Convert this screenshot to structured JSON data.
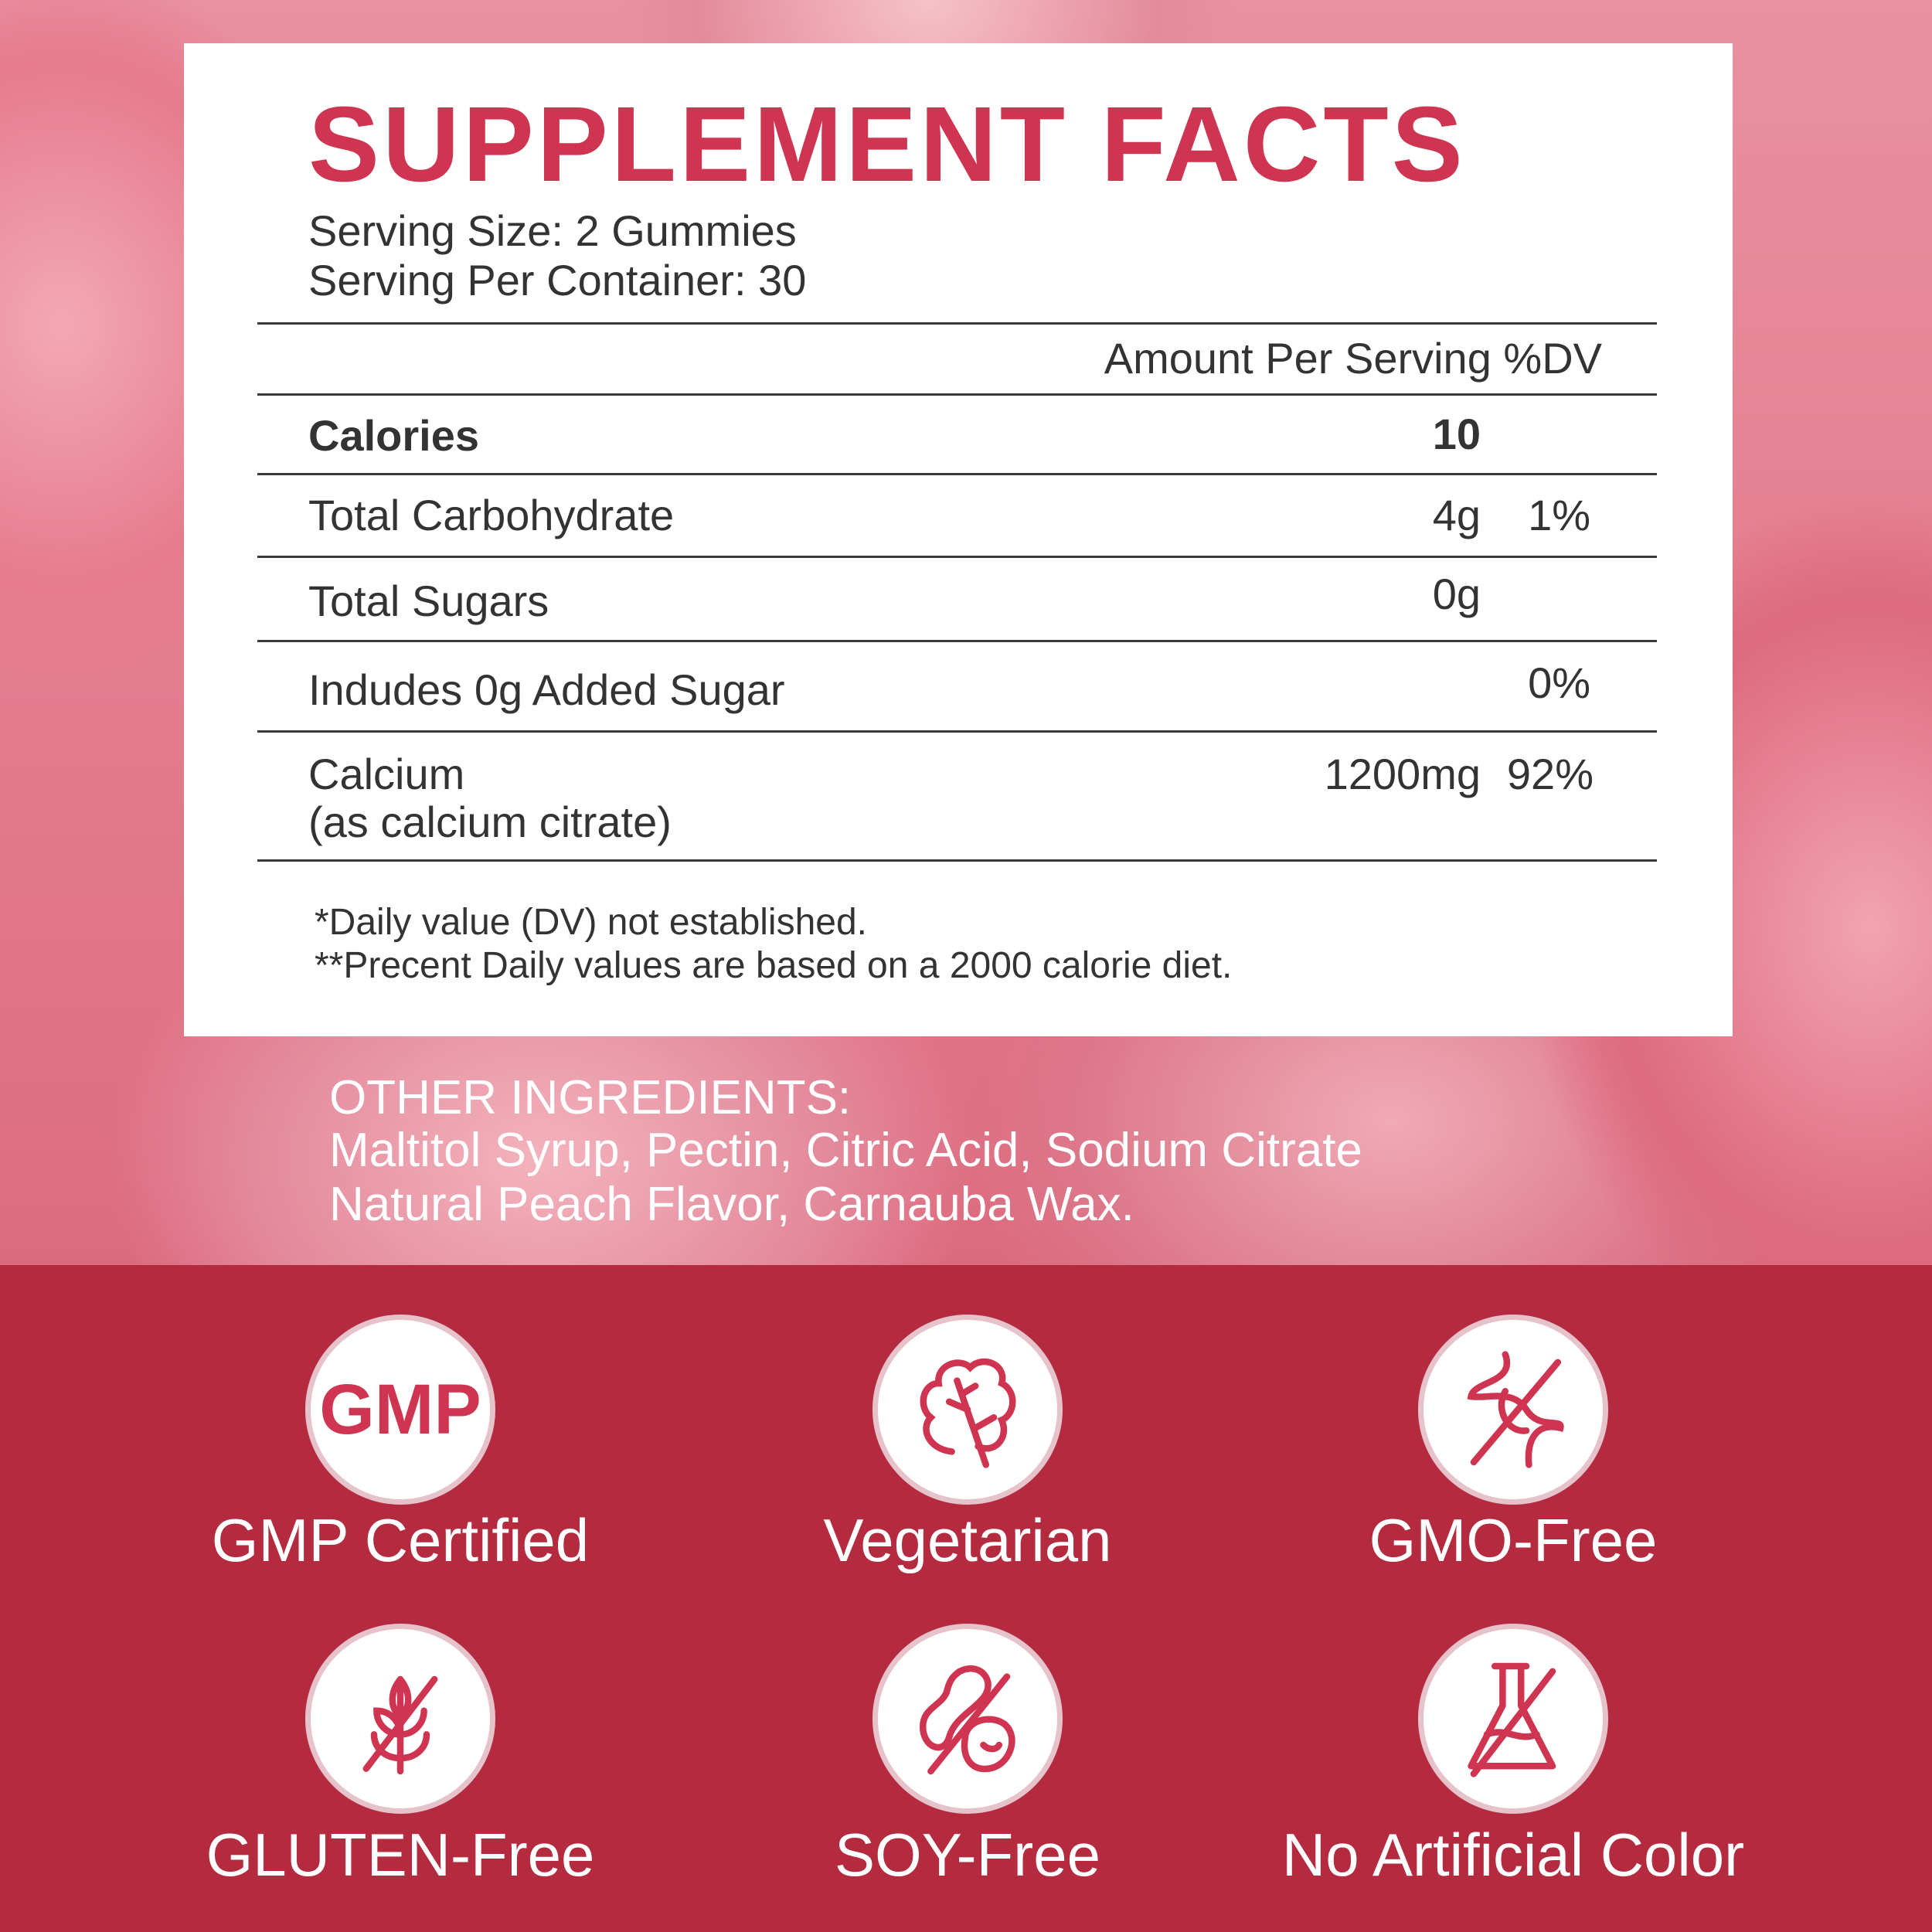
{
  "facts": {
    "title": "SUPPLEMENT FACTS",
    "serving_size": "Serving Size: 2 Gummies",
    "servings_per_container": "Serving Per Container: 30",
    "header": "Amount Per Serving %DV",
    "rows": [
      {
        "name": "Calories",
        "amount": "10",
        "dv": ""
      },
      {
        "name": "Total Carbohydrate",
        "amount": "4g",
        "dv": "1%"
      },
      {
        "name": "Total Sugars",
        "amount": "0g",
        "dv": ""
      },
      {
        "name": "Indudes 0g Added Sugar",
        "amount": "",
        "dv": "0%"
      },
      {
        "name": "Calcium",
        "name2": "(as calcium citrate)",
        "amount": "1200mg",
        "dv": "92%"
      }
    ],
    "footnote1": "*Daily value (DV) not established.",
    "footnote2": "**Precent Daily values are based on a 2000 calorie diet."
  },
  "ingredients": {
    "heading": "OTHER INGREDIENTS:",
    "line1": "Maltitol Syrup, Pectin, Citric Acid, Sodium Citrate",
    "line2": "Natural Peach Flavor, Carnauba Wax."
  },
  "badges": [
    {
      "label": "GMP Certified",
      "icon": "gmp-icon",
      "text": "GMP"
    },
    {
      "label": "Vegetarian",
      "icon": "leaf-icon"
    },
    {
      "label": "GMO-Free",
      "icon": "dna-crossed-icon"
    },
    {
      "label": "GLUTEN-Free",
      "icon": "wheat-crossed-icon"
    },
    {
      "label": "SOY-Free",
      "icon": "bean-crossed-icon"
    },
    {
      "label": "No Artificial Color",
      "icon": "flask-crossed-icon"
    }
  ],
  "colors": {
    "accent": "#cf3550",
    "band": "#b42b40",
    "text": "#333333"
  }
}
